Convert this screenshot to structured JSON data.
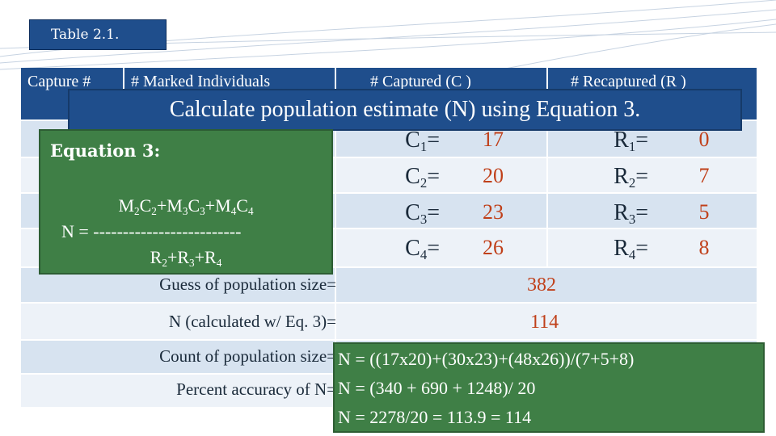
{
  "table_label": "Table 2.1.",
  "headers": {
    "capture": "Capture #",
    "marked": "# Marked Individuals",
    "captured": "# Captured (C )",
    "recaptured": "# Recaptured (R )"
  },
  "banner": "Calculate population estimate (N) using Equation 3.",
  "captured": [
    {
      "sub": "1",
      "value": "17"
    },
    {
      "sub": "2",
      "value": "20"
    },
    {
      "sub": "3",
      "value": "23"
    },
    {
      "sub": "4",
      "value": "26"
    }
  ],
  "recaptured": [
    {
      "sub": "1",
      "value": "0"
    },
    {
      "sub": "2",
      "value": "7"
    },
    {
      "sub": "3",
      "value": "5"
    },
    {
      "sub": "4",
      "value": "8"
    }
  ],
  "equation": {
    "title": "Equation 3:",
    "dash_line": "N = -------------------------"
  },
  "summary": {
    "guess_label": "Guess of population size=",
    "guess_value": "382",
    "calc_label": "N (calculated w/ Eq. 3)=",
    "calc_value": "114",
    "count_label": "Count of population size=",
    "accuracy_label": "Percent accuracy of N="
  },
  "calculation": [
    "N = ((17x20)+(30x23)+(48x26))/(7+5+8)",
    "N = (340 + 690 + 1248)/ 20",
    "N = 2278/20 = 113.9 = 114"
  ],
  "colors": {
    "header_blue": "#1f4e8c",
    "row_light": "#d7e3f0",
    "box_green": "#3f7f46",
    "value_orange": "#c0401a"
  }
}
